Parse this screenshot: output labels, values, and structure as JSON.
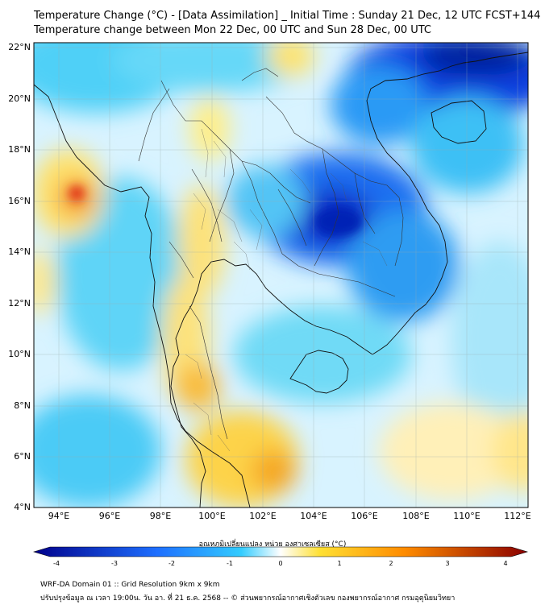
{
  "title": {
    "line1": "Temperature Change (°C) - [Data Assimilation] _ Initial Time : Sunday 21 Dec, 12 UTC FCST+144",
    "line2": "Temperature change between Mon 22 Dec, 00 UTC and Sun 28 Dec, 00 UTC"
  },
  "map": {
    "lat_labels": [
      "22°N",
      "20°N",
      "18°N",
      "16°N",
      "14°N",
      "12°N",
      "10°N",
      "8°N",
      "6°N",
      "4°N"
    ],
    "lon_labels": [
      "94°E",
      "96°E",
      "98°E",
      "100°E",
      "102°E",
      "104°E",
      "106°E",
      "108°E",
      "110°E",
      "112°E"
    ]
  },
  "colorbar": {
    "label": "อุณหภูมิเปลี่ยนแปลง หน่วย องศาเซลเซียส (°C)",
    "ticks": [
      "-4",
      "-3",
      "-2",
      "-1",
      "0",
      "1",
      "2",
      "3",
      "4"
    ]
  },
  "footer": {
    "line1": "WRF-DA Domain 01 :: Grid Resolution 9km x 9km",
    "line2": "ปรับปรุงข้อมูล ณ เวลา 19:00น. วัน อา. ที่ 21 ธ.ค. 2568 -- © ส่วนพยากรณ์อากาศเชิงตัวเลข กองพยากรณ์อากาศ กรมอุตุนิยมวิทยา"
  },
  "colors": {
    "neg_max": "#00008b",
    "neg_mid": "#1e6fff",
    "neg_low": "#33ccff",
    "neutral": "#ffffff",
    "pos_low": "#ffe033",
    "pos_mid": "#ff8c00",
    "pos_max": "#8b0000"
  }
}
